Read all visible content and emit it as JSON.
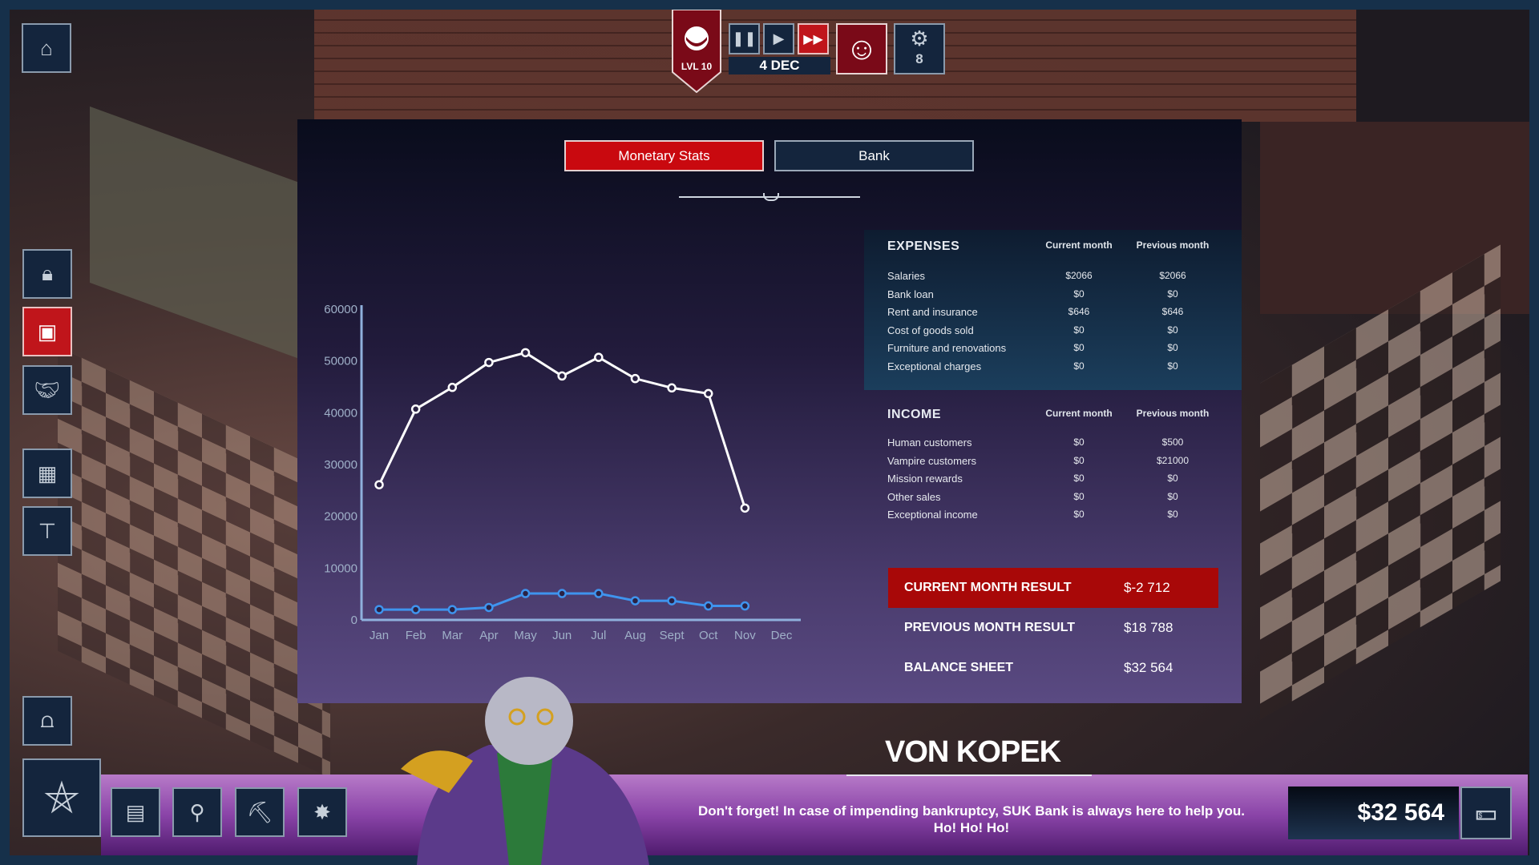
{
  "hud": {
    "level": "LVL 10",
    "date": "4 DEC",
    "speed_controls": [
      "pause",
      "play",
      "fast-forward"
    ],
    "active_speed": "fast-forward",
    "tools_count": "8"
  },
  "tabs": [
    {
      "label": "Monetary Stats",
      "active": true
    },
    {
      "label": "Bank",
      "active": false
    }
  ],
  "expenses": {
    "title": "EXPENSES",
    "col_current": "Current month",
    "col_previous": "Previous month",
    "rows": [
      {
        "label": "Salaries",
        "current": "$2066",
        "previous": "$2066"
      },
      {
        "label": "Bank loan",
        "current": "$0",
        "previous": "$0"
      },
      {
        "label": "Rent and insurance",
        "current": "$646",
        "previous": "$646"
      },
      {
        "label": "Cost of goods sold",
        "current": "$0",
        "previous": "$0"
      },
      {
        "label": "Furniture and renovations",
        "current": "$0",
        "previous": "$0"
      },
      {
        "label": "Exceptional charges",
        "current": "$0",
        "previous": "$0"
      }
    ]
  },
  "income": {
    "title": "INCOME",
    "col_current": "Current month",
    "col_previous": "Previous month",
    "rows": [
      {
        "label": "Human customers",
        "current": "$0",
        "previous": "$500"
      },
      {
        "label": "Vampire customers",
        "current": "$0",
        "previous": "$21000"
      },
      {
        "label": "Mission rewards",
        "current": "$0",
        "previous": "$0"
      },
      {
        "label": "Other sales",
        "current": "$0",
        "previous": "$0"
      },
      {
        "label": "Exceptional income",
        "current": "$0",
        "previous": "$0"
      }
    ]
  },
  "results": {
    "current_label": "CURRENT MONTH RESULT",
    "current_value": "$-2 712",
    "previous_label": "PREVIOUS MONTH RESULT",
    "previous_value": "$18 788",
    "balance_label": "BALANCE SHEET",
    "balance_value": "$32 564"
  },
  "chart_data": {
    "type": "line",
    "categories": [
      "Jan",
      "Feb",
      "Mar",
      "Apr",
      "May",
      "Jun",
      "Jul",
      "Aug",
      "Sept",
      "Oct",
      "Nov",
      "Dec"
    ],
    "series": [
      {
        "color": "#ffffff",
        "values": [
          26100,
          40700,
          44900,
          49700,
          51600,
          47100,
          50700,
          46600,
          44800,
          43700,
          21600,
          null
        ]
      },
      {
        "color": "#3f94ee",
        "values": [
          2000,
          2000,
          2000,
          2400,
          5100,
          5100,
          5100,
          3700,
          3700,
          2700,
          2700,
          null
        ]
      }
    ],
    "yticks": [
      "0",
      "10000",
      "20000",
      "30000",
      "40000",
      "50000",
      "60000"
    ],
    "ylim": [
      0,
      60000
    ],
    "grid": false
  },
  "dialog": {
    "speaker": "VON KOPEK",
    "text": "Don't forget! In case of impending bankruptcy, SUK Bank is always here to help you. Ho! Ho! Ho!"
  },
  "money": "$32 564",
  "colors": {
    "accent_red": "#c9090f",
    "ui_navy": "#14253d",
    "frame": "#16304a",
    "bottom_bar": "#8a44a8"
  }
}
